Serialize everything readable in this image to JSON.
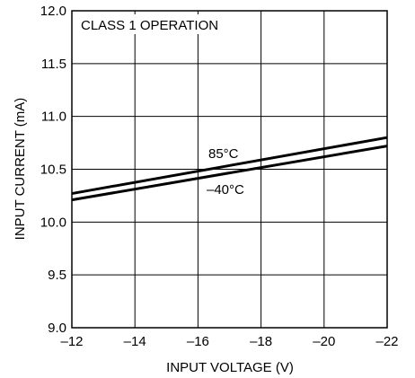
{
  "chart_data": {
    "type": "line",
    "title": "",
    "annotation": "CLASS 1 OPERATION",
    "xlabel": "INPUT VOLTAGE (V)",
    "ylabel": "INPUT CURRENT (mA)",
    "xlim": [
      -12,
      -22
    ],
    "ylim": [
      9.0,
      12.0
    ],
    "x_ticks": [
      -12,
      -14,
      -16,
      -18,
      -20,
      -22
    ],
    "x_tick_labels": [
      "–12",
      "–14",
      "–16",
      "–18",
      "–20",
      "–22"
    ],
    "y_ticks": [
      9.0,
      9.5,
      10.0,
      10.5,
      11.0,
      11.5,
      12.0
    ],
    "y_tick_labels": [
      "9.0",
      "9.5",
      "10.0",
      "10.5",
      "11.0",
      "11.5",
      "12.0"
    ],
    "grid": true,
    "series": [
      {
        "name": "85°C",
        "x": [
          -12,
          -22
        ],
        "y": [
          10.27,
          10.8
        ]
      },
      {
        "name": "–40°C",
        "x": [
          -12,
          -22
        ],
        "y": [
          10.21,
          10.72
        ]
      }
    ],
    "line_color": "#000000"
  }
}
